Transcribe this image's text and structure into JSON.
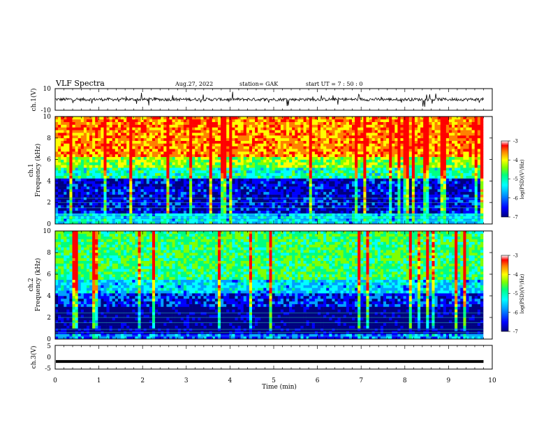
{
  "header": {
    "title": "VLF Spectra",
    "date": "Aug.27, 2022",
    "station": "station= GAK",
    "start": "start  UT =   7 : 50 : 0"
  },
  "chart_data": [
    {
      "type": "line",
      "ylabel": "ch.1(V)",
      "ylim": [
        -10,
        10
      ],
      "yticks": [
        "10",
        "-10"
      ],
      "description_hidden": true,
      "series": [
        {
          "approx_baseline": 0,
          "approx_noise_range": [
            -4,
            4
          ]
        }
      ]
    },
    {
      "type": "heatmap",
      "ylabel_top": "ch.1",
      "ylabel": "Frequency (kHz)",
      "ylim": [
        0,
        10
      ],
      "yticks": [
        "0",
        "2",
        "4",
        "6",
        "8",
        "10"
      ],
      "xlim": [
        0,
        10
      ],
      "bands": [
        {
          "from_khz": 0,
          "to_khz": 1,
          "level": -5.6
        },
        {
          "from_khz": 1,
          "to_khz": 4.3,
          "level": -6.5
        },
        {
          "from_khz": 4.3,
          "to_khz": 5.2,
          "level": -5.2
        },
        {
          "from_khz": 5.2,
          "to_khz": 6.2,
          "level": -4.5
        },
        {
          "from_khz": 6.2,
          "to_khz": 10,
          "level": -3.7
        }
      ],
      "colorbar": {
        "label": "log(PSD)(V²/Hz)",
        "ticks": [
          "-3",
          "-4",
          "-5",
          "-6",
          "-7"
        ],
        "range": [
          -7,
          -3
        ]
      }
    },
    {
      "type": "heatmap",
      "ylabel_top": "ch.2",
      "ylabel": "Frequency (kHz)",
      "ylim": [
        0,
        10
      ],
      "yticks": [
        "0",
        "2",
        "4",
        "6",
        "8",
        "10"
      ],
      "xlim": [
        0,
        10
      ],
      "bands": [
        {
          "from_khz": 0,
          "to_khz": 0.6,
          "level": -6.0
        },
        {
          "from_khz": 0.6,
          "to_khz": 3.0,
          "level": -6.9
        },
        {
          "from_khz": 3.0,
          "to_khz": 4.2,
          "level": -6.3
        },
        {
          "from_khz": 4.2,
          "to_khz": 5.5,
          "level": -5.6
        },
        {
          "from_khz": 5.5,
          "to_khz": 10,
          "level": -4.9
        }
      ],
      "colorbar": {
        "label": "log(PSD)(V²/Hz)",
        "ticks": [
          "-3",
          "-4",
          "-5",
          "-6",
          "-7"
        ],
        "range": [
          -7,
          -3
        ]
      }
    },
    {
      "type": "line",
      "ylabel": "ch.3(V)",
      "ylim": [
        -5,
        5
      ],
      "yticks": [
        "5",
        "0",
        "-5"
      ],
      "series": [
        {
          "constant_value": -1.8
        }
      ]
    }
  ],
  "xaxis": {
    "label": "Time (min)",
    "ticks": [
      "0",
      "1",
      "2",
      "3",
      "4",
      "5",
      "6",
      "7",
      "8",
      "9",
      "10"
    ],
    "xlim": [
      0,
      10
    ]
  },
  "colors": {
    "spectrogram_scale": [
      "#000080",
      "#0000ff",
      "#00a0ff",
      "#00ffff",
      "#00ff80",
      "#80ff00",
      "#ffff00",
      "#ff8000",
      "#ff0000"
    ],
    "trace": "#000000"
  }
}
